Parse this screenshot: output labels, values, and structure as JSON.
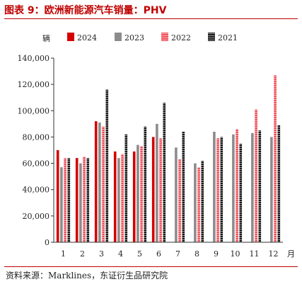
{
  "header": {
    "title": "图表 9：欧洲新能源汽车销量：PHV"
  },
  "footer": {
    "source": "资料来源：Marklines，东证衍生品研究院"
  },
  "chart_data": {
    "type": "bar",
    "title": "图表 9：欧洲新能源汽车销量：PHV",
    "ylabel": "辆",
    "xlabel": "月",
    "ylim": [
      0,
      140000
    ],
    "yticks": [
      0,
      20000,
      40000,
      60000,
      80000,
      100000,
      120000,
      140000
    ],
    "ytick_labels": [
      "0",
      "20,000",
      "40,000",
      "60,000",
      "80,000",
      "100,000",
      "120,000",
      "140,000"
    ],
    "categories": [
      "1",
      "2",
      "3",
      "4",
      "5",
      "6",
      "7",
      "8",
      "9",
      "10",
      "11",
      "12"
    ],
    "legend_position": "top",
    "grid": false,
    "series": [
      {
        "name": "2024",
        "color": "#d40000",
        "pattern": "solid",
        "values": [
          70000,
          64000,
          92000,
          69000,
          69000,
          80000,
          null,
          null,
          null,
          null,
          null,
          null
        ]
      },
      {
        "name": "2023",
        "color": "#8c8c8c",
        "pattern": "solid",
        "values": [
          57000,
          60000,
          91000,
          64000,
          74000,
          90000,
          72000,
          60000,
          84000,
          82000,
          83000,
          80000
        ]
      },
      {
        "name": "2022",
        "color": "#f0505a",
        "pattern": "hatch",
        "values": [
          64000,
          65000,
          88000,
          67000,
          73000,
          79000,
          63000,
          57000,
          79000,
          86000,
          101000,
          127000
        ]
      },
      {
        "name": "2021",
        "color": "#1a1a1a",
        "pattern": "hatch",
        "values": [
          64000,
          64000,
          116000,
          82000,
          88000,
          106000,
          84000,
          62000,
          80000,
          75000,
          85000,
          89000
        ]
      }
    ]
  }
}
